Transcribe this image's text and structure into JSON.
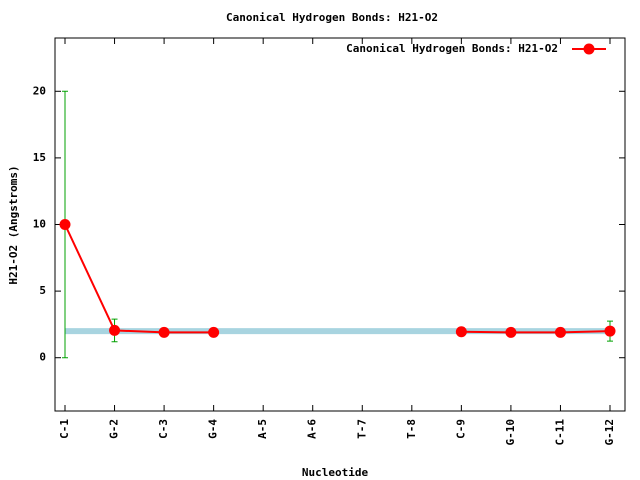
{
  "chart_data": {
    "type": "line",
    "title": "Canonical Hydrogen Bonds: H21-O2",
    "x_label": "Nucleotide",
    "y_label": "H21-O2 (Angstroms)",
    "categories": [
      "C-1",
      "G-2",
      "C-3",
      "G-4",
      "A-5",
      "A-6",
      "T-7",
      "T-8",
      "C-9",
      "G-10",
      "C-11",
      "G-12"
    ],
    "series": [
      {
        "name": "Canonical Hydrogen Bonds: H21-O2",
        "color": "#ff0000",
        "values": [
          10,
          2.05,
          1.9,
          1.9,
          null,
          null,
          null,
          null,
          1.95,
          1.9,
          1.9,
          2.0
        ],
        "errors": [
          10,
          0.85,
          null,
          null,
          null,
          null,
          null,
          null,
          null,
          null,
          null,
          0.75
        ],
        "error_color": "#00a000"
      }
    ],
    "reference": {
      "value": 2.0,
      "color": "#a8d4e0"
    },
    "ylim": [
      -4,
      24
    ],
    "yticks": [
      0,
      5,
      10,
      15,
      20
    ],
    "legend": "top-right"
  }
}
